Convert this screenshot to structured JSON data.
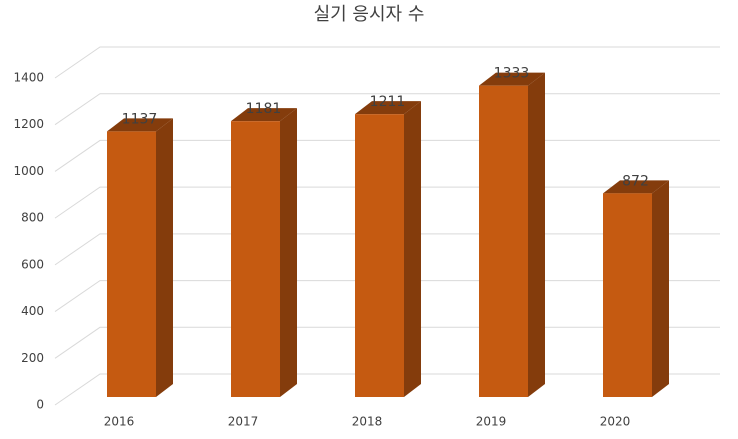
{
  "chart_data": {
    "type": "bar3d",
    "title": "실기 응시자 수",
    "categories": [
      "2016",
      "2017",
      "2018",
      "2019",
      "2020"
    ],
    "values": [
      1137,
      1181,
      1211,
      1333,
      872
    ],
    "color": "#c55a11",
    "shade_color": "#843c0c",
    "ylim": [
      0,
      1400
    ],
    "yticks": [
      0,
      200,
      400,
      600,
      800,
      1000,
      1200,
      1400
    ],
    "grid": true
  }
}
